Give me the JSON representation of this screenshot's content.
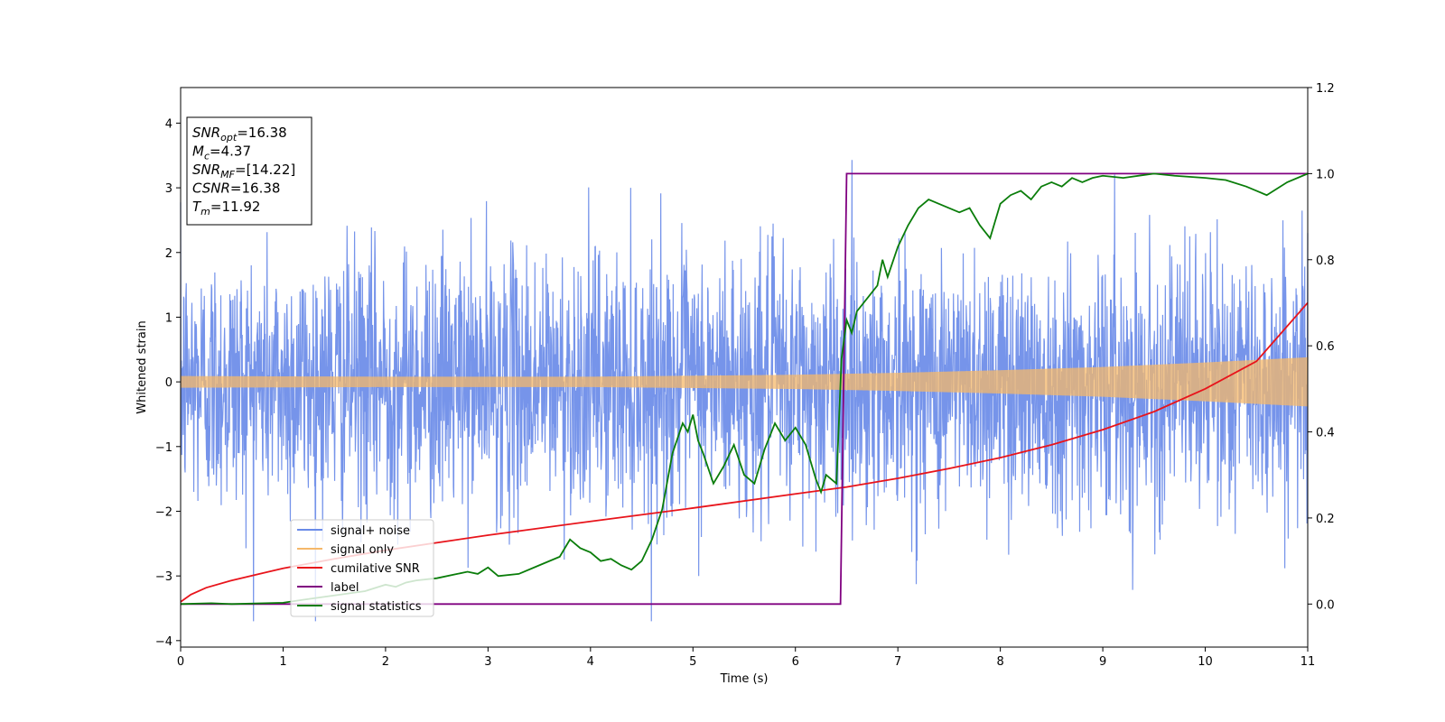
{
  "chart_data": {
    "type": "line",
    "xlabel": "Time (s)",
    "ylabel": "Whitened strain",
    "xlim": [
      0,
      11
    ],
    "ylim_left": [
      -4.1,
      4.55
    ],
    "ylim_right": [
      -0.1,
      1.2
    ],
    "x_ticks": [
      "0",
      "1",
      "2",
      "3",
      "4",
      "5",
      "6",
      "7",
      "8",
      "9",
      "10",
      "11"
    ],
    "y_ticks_left": [
      "−4",
      "−3",
      "−2",
      "−1",
      "0",
      "1",
      "2",
      "3",
      "4"
    ],
    "y_ticks_right": [
      "0.0",
      "0.2",
      "0.4",
      "0.6",
      "0.8",
      "1.0",
      "1.2"
    ],
    "grid": false,
    "legend_position": "lower-left",
    "annotation": [
      {
        "base": "SNR",
        "sub": "opt",
        "rest": "=16.38"
      },
      {
        "base": "M",
        "sub": "c",
        "rest": "=4.37"
      },
      {
        "base": "SNR",
        "sub": "MF",
        "rest": "=[14.22]"
      },
      {
        "base": "CSNR",
        "sub": "",
        "rest": "=16.38"
      },
      {
        "base": "T",
        "sub": "m",
        "rest": "=11.92"
      }
    ],
    "series": [
      {
        "name": "signal+ noise",
        "axis": "left",
        "color": "#6a8be8",
        "kind": "noise-trace",
        "sigma": 1.0,
        "y_range": [
          -3.7,
          3.8
        ],
        "samples": 3000
      },
      {
        "name": "signal only",
        "axis": "left",
        "color": "#f5b86a",
        "kind": "chirp-envelope",
        "envelope": {
          "x": [
            0,
            2,
            4,
            6,
            7,
            8,
            9,
            10,
            11
          ],
          "amp": [
            0.09,
            0.08,
            0.08,
            0.11,
            0.14,
            0.18,
            0.23,
            0.3,
            0.38
          ]
        }
      },
      {
        "name": "cumilative SNR",
        "axis": "right",
        "color": "#e8141b",
        "x": [
          0,
          0.1,
          0.25,
          0.5,
          1,
          1.5,
          2,
          3,
          4,
          5,
          6,
          6.5,
          7,
          7.5,
          8,
          8.5,
          9,
          9.5,
          10,
          10.5,
          11
        ],
        "y": [
          0.005,
          0.022,
          0.038,
          0.055,
          0.083,
          0.105,
          0.125,
          0.16,
          0.192,
          0.223,
          0.256,
          0.272,
          0.292,
          0.315,
          0.34,
          0.37,
          0.405,
          0.447,
          0.5,
          0.564,
          0.7
        ]
      },
      {
        "name": "label",
        "axis": "right",
        "color": "#800080",
        "x": [
          0,
          6.44,
          6.5,
          11
        ],
        "y": [
          0,
          0,
          1,
          1
        ]
      },
      {
        "name": "signal statistics",
        "axis": "right",
        "color": "#0a7d0a",
        "x": [
          0,
          0.3,
          0.5,
          1,
          1.2,
          1.5,
          1.8,
          2.0,
          2.1,
          2.2,
          2.3,
          2.5,
          2.7,
          2.8,
          2.9,
          3.0,
          3.1,
          3.3,
          3.5,
          3.7,
          3.8,
          3.9,
          4.0,
          4.1,
          4.2,
          4.3,
          4.4,
          4.5,
          4.6,
          4.7,
          4.8,
          4.9,
          4.95,
          5.0,
          5.05,
          5.1,
          5.2,
          5.3,
          5.4,
          5.5,
          5.6,
          5.7,
          5.8,
          5.9,
          6.0,
          6.05,
          6.1,
          6.2,
          6.25,
          6.3,
          6.4,
          6.45,
          6.5,
          6.55,
          6.6,
          6.7,
          6.8,
          6.85,
          6.9,
          7.0,
          7.1,
          7.2,
          7.3,
          7.4,
          7.5,
          7.6,
          7.7,
          7.8,
          7.9,
          8.0,
          8.1,
          8.2,
          8.3,
          8.4,
          8.5,
          8.6,
          8.7,
          8.8,
          8.9,
          9.0,
          9.2,
          9.5,
          9.7,
          10.0,
          10.2,
          10.4,
          10.5,
          10.6,
          10.8,
          11.0
        ],
        "y": [
          0.0,
          0.002,
          0.0,
          0.003,
          0.01,
          0.02,
          0.03,
          0.045,
          0.04,
          0.05,
          0.055,
          0.06,
          0.07,
          0.075,
          0.07,
          0.085,
          0.065,
          0.07,
          0.09,
          0.11,
          0.15,
          0.13,
          0.12,
          0.1,
          0.105,
          0.09,
          0.08,
          0.1,
          0.15,
          0.22,
          0.35,
          0.42,
          0.4,
          0.44,
          0.38,
          0.35,
          0.28,
          0.32,
          0.37,
          0.3,
          0.28,
          0.36,
          0.42,
          0.38,
          0.41,
          0.39,
          0.37,
          0.29,
          0.26,
          0.3,
          0.28,
          0.57,
          0.66,
          0.63,
          0.68,
          0.71,
          0.74,
          0.8,
          0.76,
          0.83,
          0.88,
          0.92,
          0.94,
          0.93,
          0.92,
          0.91,
          0.92,
          0.88,
          0.85,
          0.93,
          0.95,
          0.96,
          0.94,
          0.97,
          0.98,
          0.97,
          0.99,
          0.98,
          0.99,
          0.995,
          0.99,
          1.0,
          0.995,
          0.99,
          0.985,
          0.97,
          0.96,
          0.95,
          0.98,
          1.0
        ]
      }
    ]
  }
}
